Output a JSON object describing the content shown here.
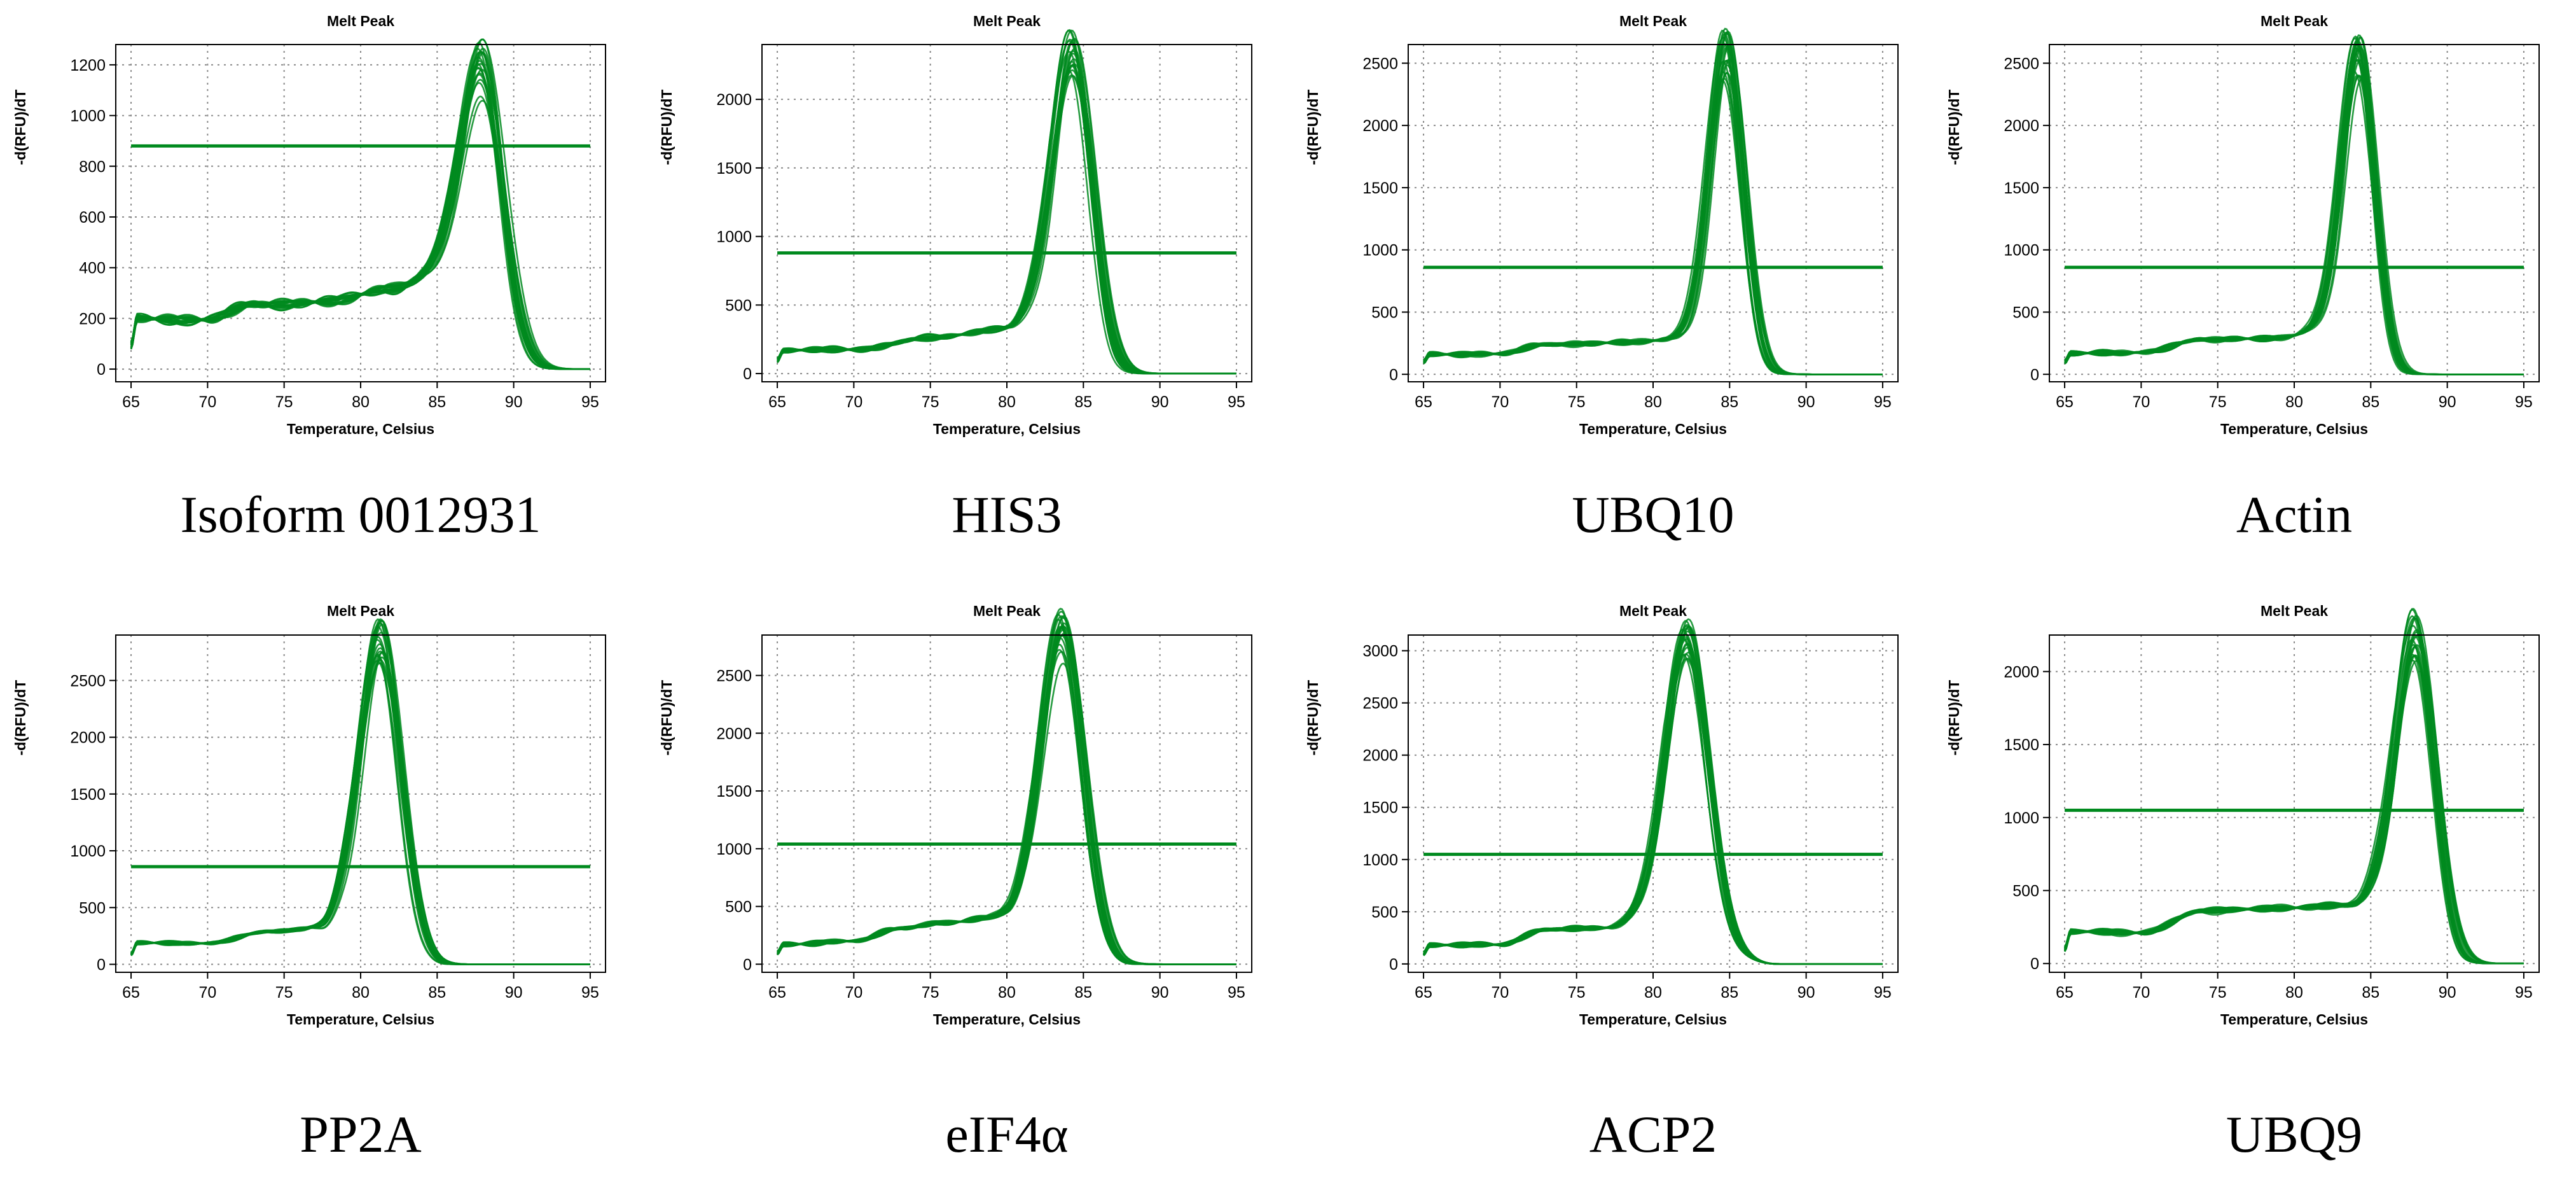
{
  "colors": {
    "curve": "#008a1e",
    "threshold": "#008a1e",
    "grid": "#8a8a8a",
    "axis": "#000000"
  },
  "chart_data": [
    {
      "type": "line",
      "title": "Melt Peak",
      "xlabel": "Temperature, Celsius",
      "ylabel": "-d(RFU)/dT",
      "gene": "Isoform 0012931",
      "xlim": [
        64,
        96
      ],
      "xticks": [
        65,
        70,
        75,
        80,
        85,
        90,
        95
      ],
      "ylim": [
        -50,
        1280
      ],
      "yticks": [
        0,
        200,
        400,
        600,
        800,
        1000,
        1200
      ],
      "grid": true,
      "threshold": 880,
      "replicates": 22,
      "peak_temp": 88,
      "peak_height": 1050,
      "peak_spread": 130,
      "baseline": [
        [
          65,
          90
        ],
        [
          65.4,
          200
        ],
        [
          70,
          195
        ],
        [
          73,
          255
        ],
        [
          78,
          265
        ],
        [
          82,
          320
        ],
        [
          85.3,
          380
        ],
        [
          90,
          0
        ],
        [
          95,
          0
        ]
      ],
      "peak_width": 1.35
    },
    {
      "type": "line",
      "title": "Melt Peak",
      "xlabel": "Temperature, Celsius",
      "ylabel": "-d(RFU)/dT",
      "gene": "HIS3",
      "xlim": [
        64,
        96
      ],
      "xticks": [
        65,
        70,
        75,
        80,
        85,
        90,
        95
      ],
      "ylim": [
        -60,
        2400
      ],
      "yticks": [
        0,
        500,
        1000,
        1500,
        2000
      ],
      "grid": true,
      "threshold": 880,
      "replicates": 22,
      "peak_temp": 84.3,
      "peak_height": 2120,
      "peak_spread": 170,
      "baseline": [
        [
          65,
          100
        ],
        [
          65.4,
          170
        ],
        [
          70,
          175
        ],
        [
          75,
          260
        ],
        [
          80,
          330
        ],
        [
          81.8,
          420
        ],
        [
          87,
          0
        ],
        [
          95,
          0
        ]
      ],
      "peak_width": 1.25
    },
    {
      "type": "line",
      "title": "Melt Peak",
      "xlabel": "Temperature, Celsius",
      "ylabel": "-d(RFU)/dT",
      "gene": "UBQ10",
      "xlim": [
        64,
        96
      ],
      "xticks": [
        65,
        70,
        75,
        80,
        85,
        90,
        95
      ],
      "ylim": [
        -60,
        2650
      ],
      "yticks": [
        0,
        500,
        1000,
        1500,
        2000,
        2500
      ],
      "grid": true,
      "threshold": 860,
      "replicates": 22,
      "peak_temp": 84.8,
      "peak_height": 2380,
      "peak_spread": 220,
      "baseline": [
        [
          65,
          100
        ],
        [
          65.4,
          160
        ],
        [
          70,
          165
        ],
        [
          73,
          240
        ],
        [
          78,
          255
        ],
        [
          82.5,
          290
        ],
        [
          88,
          0
        ],
        [
          95,
          0
        ]
      ],
      "peak_width": 1.1
    },
    {
      "type": "line",
      "title": "Melt Peak",
      "xlabel": "Temperature, Celsius",
      "ylabel": "-d(RFU)/dT",
      "gene": "Actin",
      "xlim": [
        64,
        96
      ],
      "xticks": [
        65,
        70,
        75,
        80,
        85,
        90,
        95
      ],
      "ylim": [
        -60,
        2650
      ],
      "yticks": [
        0,
        500,
        1000,
        1500,
        2000,
        2500
      ],
      "grid": true,
      "threshold": 860,
      "replicates": 22,
      "peak_temp": 84.2,
      "peak_height": 2330,
      "peak_spread": 180,
      "baseline": [
        [
          65,
          100
        ],
        [
          65.4,
          170
        ],
        [
          70,
          175
        ],
        [
          74,
          280
        ],
        [
          79,
          290
        ],
        [
          82.2,
          380
        ],
        [
          87,
          0
        ],
        [
          95,
          0
        ]
      ],
      "peak_width": 1.05
    },
    {
      "type": "line",
      "title": "Melt Peak",
      "xlabel": "Temperature, Celsius",
      "ylabel": "-d(RFU)/dT",
      "gene": "PP2A",
      "xlim": [
        64,
        96
      ],
      "xticks": [
        65,
        70,
        75,
        80,
        85,
        90,
        95
      ],
      "ylim": [
        -70,
        2900
      ],
      "yticks": [
        0,
        500,
        1000,
        1500,
        2000,
        2500
      ],
      "grid": true,
      "threshold": 860,
      "replicates": 22,
      "peak_temp": 81.3,
      "peak_height": 2550,
      "peak_spread": 230,
      "baseline": [
        [
          65,
          90
        ],
        [
          65.4,
          190
        ],
        [
          70,
          185
        ],
        [
          74,
          290
        ],
        [
          77.5,
          320
        ],
        [
          79,
          450
        ],
        [
          85.5,
          0
        ],
        [
          95,
          0
        ]
      ],
      "peak_width": 1.3
    },
    {
      "type": "line",
      "title": "Melt Peak",
      "xlabel": "Temperature, Celsius",
      "ylabel": "-d(RFU)/dT",
      "gene": "eIF4α",
      "xlim": [
        64,
        96
      ],
      "xticks": [
        65,
        70,
        75,
        80,
        85,
        90,
        95
      ],
      "ylim": [
        -70,
        2850
      ],
      "yticks": [
        0,
        500,
        1000,
        1500,
        2000,
        2500
      ],
      "grid": true,
      "threshold": 1040,
      "replicates": 22,
      "peak_temp": 83.6,
      "peak_height": 2450,
      "peak_spread": 240,
      "baseline": [
        [
          65,
          100
        ],
        [
          65.4,
          170
        ],
        [
          70,
          200
        ],
        [
          73,
          310
        ],
        [
          76,
          360
        ],
        [
          80,
          420
        ],
        [
          81.5,
          520
        ],
        [
          88,
          0
        ],
        [
          95,
          0
        ]
      ],
      "peak_width": 1.35
    },
    {
      "type": "line",
      "title": "Melt Peak",
      "xlabel": "Temperature, Celsius",
      "ylabel": "-d(RFU)/dT",
      "gene": "ACP2",
      "xlim": [
        64,
        96
      ],
      "xticks": [
        65,
        70,
        75,
        80,
        85,
        90,
        95
      ],
      "ylim": [
        -80,
        3150
      ],
      "yticks": [
        0,
        500,
        1000,
        1500,
        2000,
        2500,
        3000
      ],
      "grid": true,
      "threshold": 1050,
      "replicates": 22,
      "peak_temp": 82.2,
      "peak_height": 2780,
      "peak_spread": 230,
      "baseline": [
        [
          65,
          100
        ],
        [
          65.4,
          180
        ],
        [
          70,
          185
        ],
        [
          73,
          330
        ],
        [
          77,
          345
        ],
        [
          79.8,
          450
        ],
        [
          88,
          0
        ],
        [
          95,
          0
        ]
      ],
      "peak_width": 1.35
    },
    {
      "type": "line",
      "title": "Melt Peak",
      "xlabel": "Temperature, Celsius",
      "ylabel": "-d(RFU)/dT",
      "gene": "UBQ9",
      "xlim": [
        64,
        96
      ],
      "xticks": [
        65,
        70,
        75,
        80,
        85,
        90,
        95
      ],
      "ylim": [
        -60,
        2250
      ],
      "yticks": [
        0,
        500,
        1000,
        1500,
        2000
      ],
      "grid": true,
      "threshold": 1050,
      "replicates": 22,
      "peak_temp": 88,
      "peak_height": 1980,
      "peak_spread": 190,
      "baseline": [
        [
          65,
          100
        ],
        [
          65.4,
          220
        ],
        [
          70,
          210
        ],
        [
          74,
          360
        ],
        [
          79,
          380
        ],
        [
          84,
          400
        ],
        [
          85.3,
          460
        ],
        [
          91,
          0
        ],
        [
          95,
          0
        ]
      ],
      "peak_width": 1.25
    }
  ]
}
